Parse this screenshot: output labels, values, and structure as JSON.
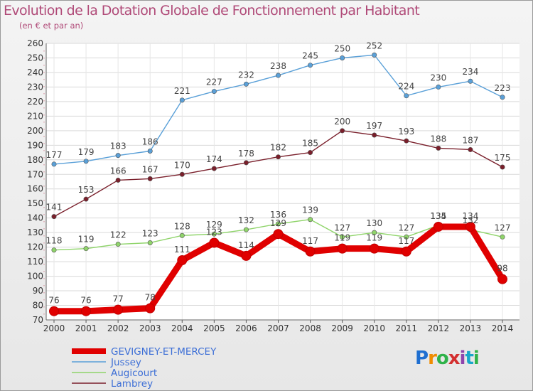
{
  "title": "Evolution de la Dotation Globale de Fonctionnement par Habitant",
  "subtitle": "(en € et par an)",
  "logo": {
    "text": "Proxiti",
    "colors": [
      "#1f6fd1",
      "#f08c00",
      "#2fb24a",
      "#d32f2f",
      "#8e44ad",
      "#18a7c9",
      "#2fb24a"
    ]
  },
  "chart_data": {
    "type": "line",
    "title": "Evolution de la Dotation Globale de Fonctionnement par Habitant",
    "subtitle": "(en € et par an)",
    "x": [
      2000,
      2001,
      2002,
      2003,
      2004,
      2005,
      2006,
      2007,
      2008,
      2009,
      2010,
      2011,
      2012,
      2013,
      2014
    ],
    "ylim": [
      70,
      260
    ],
    "yticks": [
      70,
      80,
      90,
      100,
      110,
      120,
      130,
      140,
      150,
      160,
      170,
      180,
      190,
      200,
      210,
      220,
      230,
      240,
      250,
      260
    ],
    "grid": true,
    "legend_position": "bottom-left",
    "series": [
      {
        "name": "Jussey",
        "color": "#5aa0d8",
        "values": [
          177,
          179,
          183,
          186,
          221,
          227,
          232,
          238,
          245,
          250,
          252,
          224,
          230,
          234,
          223
        ]
      },
      {
        "name": "Lambrey",
        "color": "#7a1f2b",
        "values": [
          141,
          153,
          166,
          167,
          170,
          174,
          178,
          182,
          185,
          200,
          197,
          193,
          188,
          187,
          175
        ]
      },
      {
        "name": "Augicourt",
        "color": "#8fd46a",
        "values": [
          118,
          119,
          122,
          123,
          128,
          129,
          132,
          136,
          139,
          127,
          130,
          127,
          135,
          132,
          127
        ]
      },
      {
        "name": "GEVIGNEY-ET-MERCEY",
        "color": "#e00000",
        "values": [
          76,
          76,
          77,
          78,
          111,
          123,
          114,
          129,
          117,
          119,
          119,
          117,
          134,
          134,
          98
        ]
      }
    ],
    "legend_order": [
      "GEVIGNEY-ET-MERCEY",
      "Jussey",
      "Augicourt",
      "Lambrey"
    ],
    "legend_text_color": "#3d6fd6"
  }
}
